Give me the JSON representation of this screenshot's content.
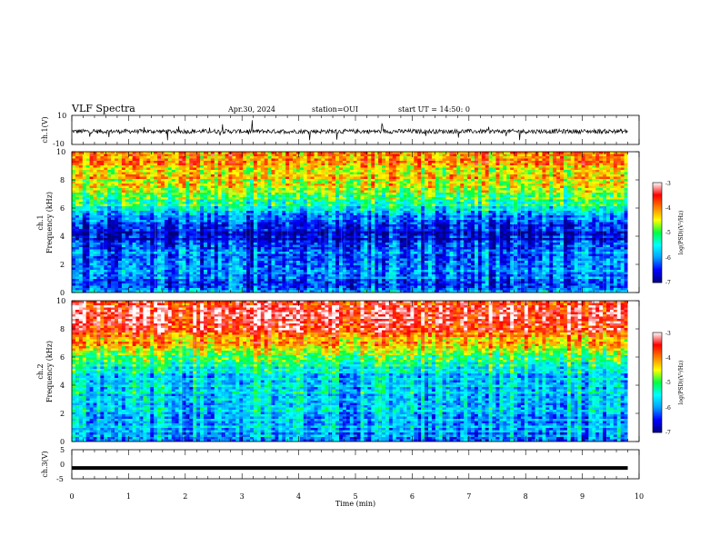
{
  "header": {
    "title": "VLF Spectra",
    "date": "Apr.30, 2024",
    "station": "station=OUI",
    "start": "start UT =  14:50: 0"
  },
  "chart_data": [
    {
      "type": "line",
      "title": "",
      "ylabel": "ch.1(V)",
      "xlabel": "",
      "xlim": [
        0,
        10
      ],
      "ylim": [
        -10,
        10
      ],
      "yticks": [
        "10",
        "-10"
      ],
      "series": [
        {
          "x": [
            0,
            9.8
          ],
          "values": [
            -1,
            -1
          ]
        }
      ],
      "grid": false
    },
    {
      "type": "heatmap",
      "ylabel_line1": "ch.1",
      "ylabel_line2": "Frequency (kHz)",
      "xlim": [
        0,
        10
      ],
      "ylim": [
        0,
        10
      ],
      "yticks": [
        "0",
        "2",
        "4",
        "6",
        "8",
        "10"
      ],
      "data_extent_min": 9.8,
      "color_range": [
        -7,
        -3
      ],
      "colorbar_label": "log(PSD)(V²/Hz)",
      "colorbar_ticks": [
        "-3",
        "-4",
        "-5",
        "-6",
        "-7"
      ],
      "colormap": [
        "#000080",
        "#0000ff",
        "#00a0ff",
        "#00ffff",
        "#00ff40",
        "#ffff00",
        "#ff8000",
        "#ff0000",
        "#ffffff"
      ],
      "profile_khz": [
        0,
        0.5,
        1,
        1.5,
        2,
        2.5,
        3,
        3.5,
        4,
        4.5,
        5,
        5.5,
        6,
        6.5,
        7,
        7.5,
        8,
        8.5,
        9,
        9.5,
        10
      ],
      "profile_log_psd": [
        -6.0,
        -6.1,
        -6.2,
        -6.0,
        -6.3,
        -6.3,
        -6.2,
        -6.6,
        -6.7,
        -6.6,
        -6.3,
        -5.9,
        -5.4,
        -5.1,
        -4.8,
        -4.6,
        -4.4,
        -4.3,
        -4.2,
        -4.2,
        -4.2
      ]
    },
    {
      "type": "heatmap",
      "ylabel_line1": "ch.2",
      "ylabel_line2": "Frequency (kHz)",
      "xlim": [
        0,
        10
      ],
      "ylim": [
        0,
        10
      ],
      "yticks": [
        "0",
        "2",
        "4",
        "6",
        "8",
        "10"
      ],
      "data_extent_min": 9.8,
      "color_range": [
        -7,
        -3
      ],
      "colorbar_label": "log(PSD)(V²/Hz)",
      "colorbar_ticks": [
        "-3",
        "-4",
        "-5",
        "-6",
        "-7"
      ],
      "colormap": [
        "#000080",
        "#0000ff",
        "#00a0ff",
        "#00ffff",
        "#00ff40",
        "#ffff00",
        "#ff8000",
        "#ff0000",
        "#ffffff"
      ],
      "profile_khz": [
        0,
        0.5,
        1,
        1.5,
        2,
        2.5,
        3,
        3.5,
        4,
        4.5,
        5,
        5.5,
        6,
        6.5,
        7,
        7.5,
        8,
        8.5,
        9,
        9.5,
        10
      ],
      "profile_log_psd": [
        -5.9,
        -5.9,
        -5.8,
        -5.8,
        -5.8,
        -5.9,
        -5.8,
        -5.7,
        -5.8,
        -5.7,
        -5.6,
        -5.3,
        -4.9,
        -4.5,
        -4.2,
        -3.9,
        -3.7,
        -3.6,
        -3.5,
        -3.5,
        -3.5
      ]
    },
    {
      "type": "line",
      "ylabel": "ch.3(V)",
      "xlabel": "Time (min)",
      "xlim": [
        0,
        10
      ],
      "ylim": [
        -5,
        5
      ],
      "yticks": [
        "5",
        "0",
        "-5"
      ],
      "xticks": [
        "0",
        "1",
        "2",
        "3",
        "4",
        "5",
        "6",
        "7",
        "8",
        "9",
        "10"
      ],
      "series": [
        {
          "x": [
            0,
            9.8
          ],
          "values": [
            -1.3,
            -1.3
          ]
        }
      ],
      "grid": false
    }
  ]
}
